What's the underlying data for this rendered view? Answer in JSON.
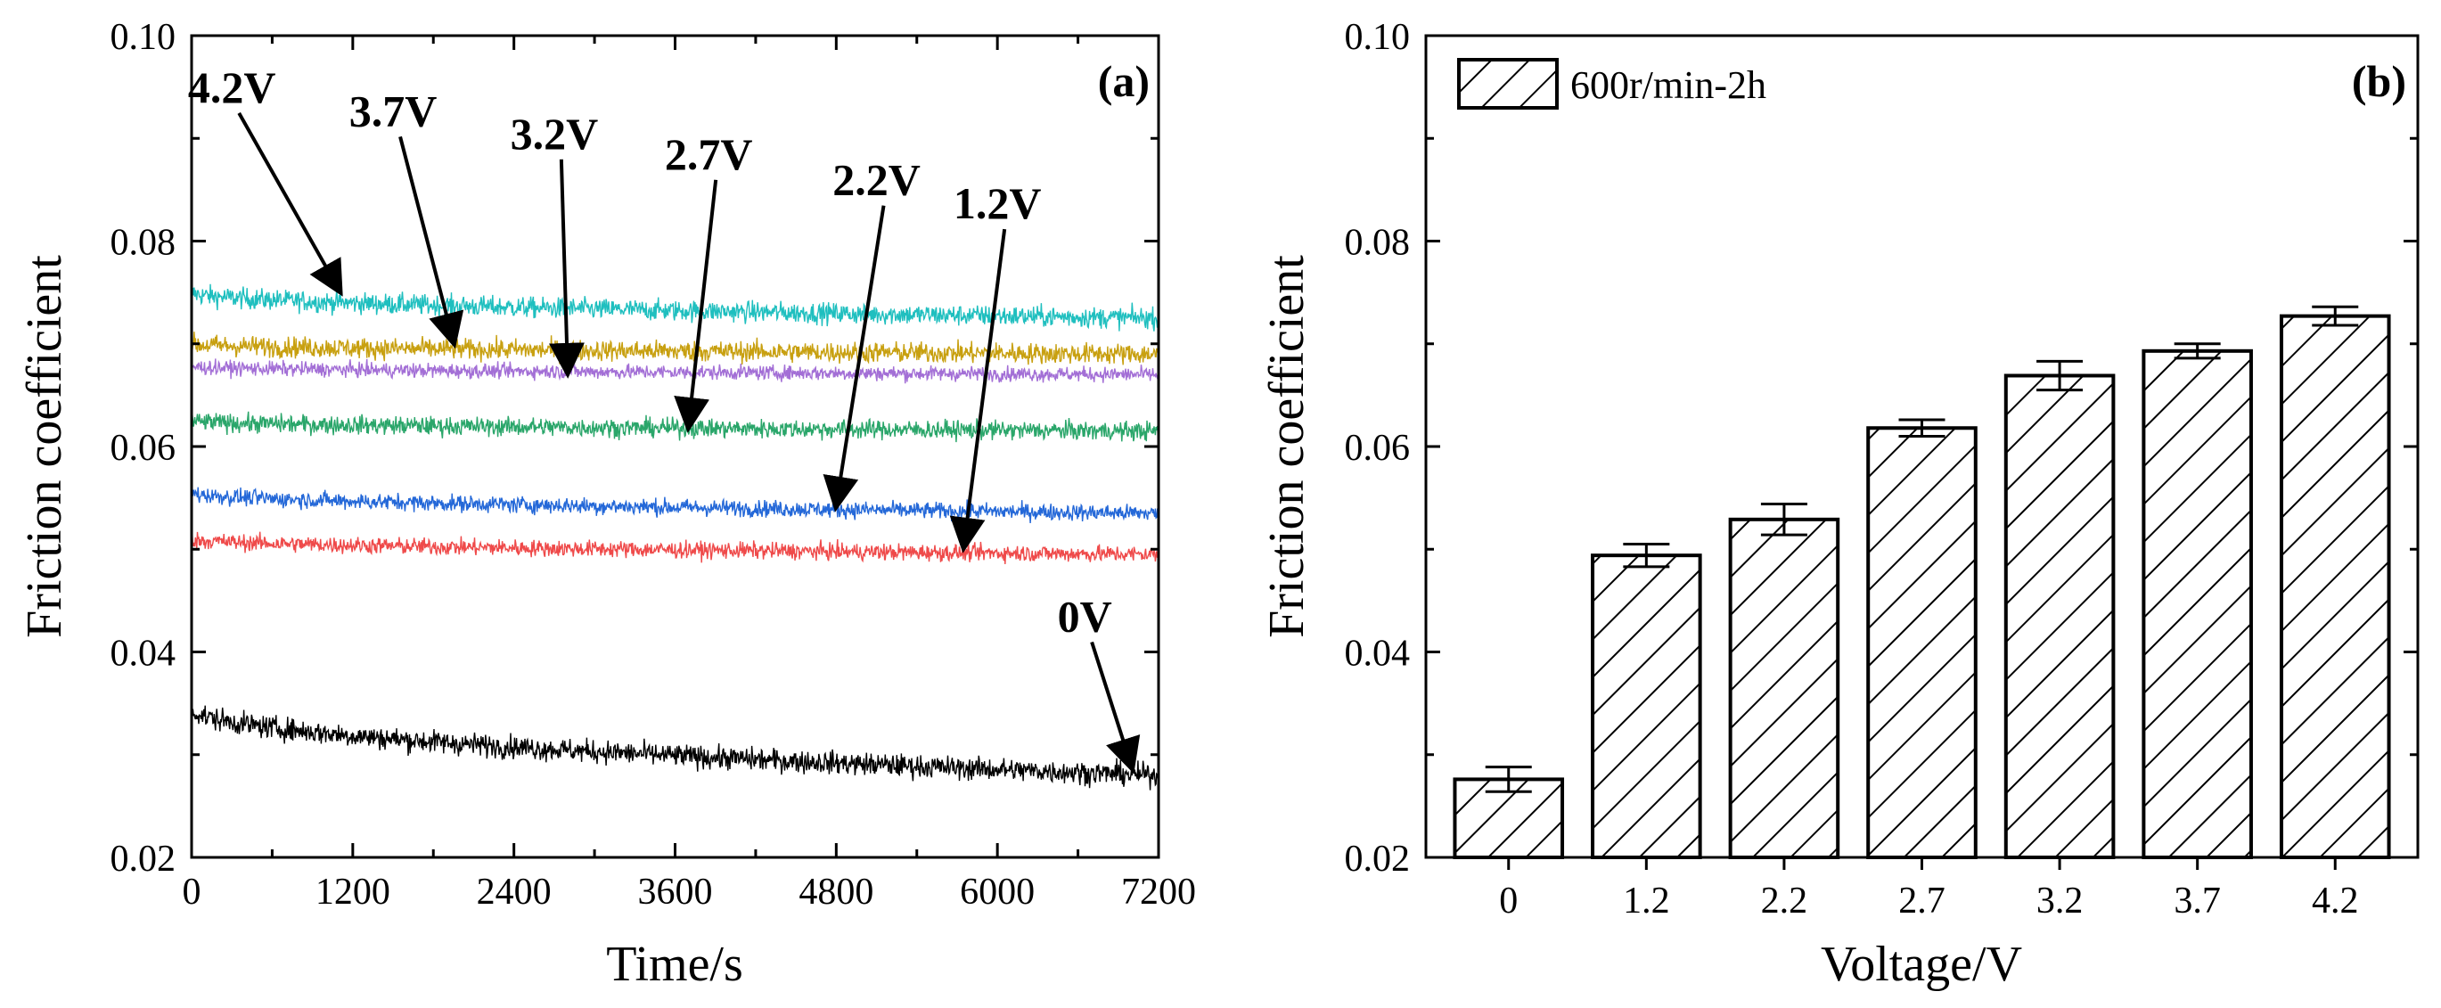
{
  "chart_data": [
    {
      "type": "line",
      "panel_label": "(a)",
      "xlabel": "Time/s",
      "ylabel": "Friction coefficient",
      "xlim": [
        0,
        7200
      ],
      "ylim": [
        0.02,
        0.1
      ],
      "xticks": [
        "0",
        "1200",
        "2400",
        "3600",
        "4800",
        "6000",
        "7200"
      ],
      "yticks": [
        "0.02",
        "0.04",
        "0.06",
        "0.08",
        "0.10"
      ],
      "series": [
        {
          "name": "4.2V",
          "color": "#1fbfbf",
          "start": 0.075,
          "end": 0.0725,
          "noise": 0.001
        },
        {
          "name": "3.7V",
          "color": "#c8a010",
          "start": 0.07,
          "end": 0.069,
          "noise": 0.001
        },
        {
          "name": "3.2V",
          "color": "#a36fd6",
          "start": 0.0678,
          "end": 0.067,
          "noise": 0.0007
        },
        {
          "name": "2.7V",
          "color": "#2aa66a",
          "start": 0.0625,
          "end": 0.0615,
          "noise": 0.0009
        },
        {
          "name": "2.2V",
          "color": "#2468d8",
          "start": 0.0555,
          "end": 0.0535,
          "noise": 0.0008
        },
        {
          "name": "1.2V",
          "color": "#ef4a4a",
          "start": 0.051,
          "end": 0.0495,
          "noise": 0.0008
        },
        {
          "name": "0V",
          "color": "#000000",
          "start": 0.0345,
          "end": 0.028,
          "noise": 0.0011
        }
      ],
      "annotations": [
        {
          "text": "4.2V",
          "label_t": 300,
          "label_f": 0.0935,
          "arrow_t": 1100,
          "arrow_f": 0.0752
        },
        {
          "text": "3.7V",
          "label_t": 1500,
          "label_f": 0.0912,
          "arrow_t": 1950,
          "arrow_f": 0.0702
        },
        {
          "text": "3.2V",
          "label_t": 2700,
          "label_f": 0.089,
          "arrow_t": 2800,
          "arrow_f": 0.0673
        },
        {
          "text": "2.7V",
          "label_t": 3850,
          "label_f": 0.087,
          "arrow_t": 3700,
          "arrow_f": 0.062
        },
        {
          "text": "2.2V",
          "label_t": 5100,
          "label_f": 0.0845,
          "arrow_t": 4800,
          "arrow_f": 0.0543
        },
        {
          "text": "1.2V",
          "label_t": 6000,
          "label_f": 0.0822,
          "arrow_t": 5750,
          "arrow_f": 0.0503
        },
        {
          "text": "0V",
          "label_t": 6650,
          "label_f": 0.042,
          "arrow_t": 7000,
          "arrow_f": 0.0288
        }
      ]
    },
    {
      "type": "bar",
      "panel_label": "(b)",
      "xlabel": "Voltage/V",
      "ylabel": "Friction coefficient",
      "ylim": [
        0.02,
        0.1
      ],
      "yticks": [
        "0.02",
        "0.04",
        "0.06",
        "0.08",
        "0.10"
      ],
      "categories": [
        "0",
        "1.2",
        "2.2",
        "2.7",
        "3.2",
        "3.7",
        "4.2"
      ],
      "values": [
        0.0276,
        0.0494,
        0.0529,
        0.0618,
        0.0669,
        0.0693,
        0.0727
      ],
      "errors": [
        0.0012,
        0.0011,
        0.0015,
        0.0008,
        0.0014,
        0.0007,
        0.0009
      ],
      "legend": {
        "label": "600r/min-2h",
        "placement": "top-left"
      }
    }
  ]
}
